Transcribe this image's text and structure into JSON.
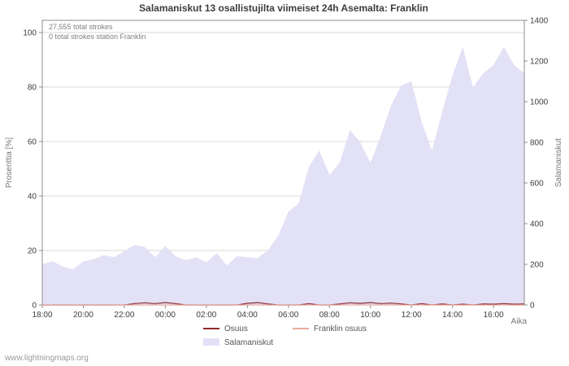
{
  "watermark": "www.lightningmaps.org",
  "colors": {
    "area": "#e3e1f6",
    "osuus": "#8f2a2a",
    "franklin": "#e7ab9f",
    "grid": "#d9d9d9",
    "axis": "#8c8c8c",
    "text": "#3c3c3c"
  },
  "annotations": {
    "total_strokes": "27,555 total strokes",
    "station_strokes": "0 total strokes station Franklin"
  },
  "legend": {
    "osuus": "Osuus",
    "franklin": "Franklin osuus",
    "strokes": "Salamaniskut"
  },
  "chart_data": {
    "type": "area",
    "title": "Salamaniskut 13 osallistujilta viimeiset 24h Asemalta: Franklin",
    "xlabel": "Aika",
    "ylabel_left": "Prosenttia  [%]",
    "ylabel_right": "Salamaniskut",
    "grid": "horizontal",
    "legend_position": "bottom",
    "x_tick_labels": [
      "18:00",
      "20:00",
      "22:00",
      "00:00",
      "02:00",
      "04:00",
      "06:00",
      "08:00",
      "10:00",
      "12:00",
      "14:00",
      "16:00"
    ],
    "x_tick_every_n_points": 4,
    "left_axis": {
      "ticks": [
        0,
        20,
        40,
        60,
        80,
        100
      ],
      "max": 100,
      "unit": "%"
    },
    "right_axis": {
      "ticks": [
        0,
        200,
        400,
        600,
        800,
        1000,
        1200,
        1400
      ],
      "max": 1400
    },
    "x": [
      "18:00",
      "18:30",
      "19:00",
      "19:30",
      "20:00",
      "20:30",
      "21:00",
      "21:30",
      "22:00",
      "22:30",
      "23:00",
      "23:30",
      "00:00",
      "00:30",
      "01:00",
      "01:30",
      "02:00",
      "02:30",
      "03:00",
      "03:30",
      "04:00",
      "04:30",
      "05:00",
      "05:30",
      "06:00",
      "06:30",
      "07:00",
      "07:30",
      "08:00",
      "08:30",
      "09:00",
      "09:30",
      "10:00",
      "10:30",
      "11:00",
      "11:30",
      "12:00",
      "12:30",
      "13:00",
      "13:30",
      "14:00",
      "14:30",
      "15:00",
      "15:30",
      "16:00",
      "16:30",
      "17:00",
      "17:30"
    ],
    "series": [
      {
        "name": "Salamaniskut",
        "type": "area",
        "axis": "right",
        "values": [
          200,
          215,
          190,
          175,
          215,
          225,
          245,
          235,
          265,
          295,
          285,
          235,
          290,
          240,
          220,
          235,
          210,
          255,
          195,
          240,
          235,
          230,
          270,
          340,
          460,
          500,
          680,
          760,
          640,
          700,
          860,
          800,
          700,
          830,
          980,
          1080,
          1100,
          900,
          760,
          950,
          1130,
          1270,
          1070,
          1140,
          1180,
          1270,
          1180,
          1140
        ]
      },
      {
        "name": "Osuus",
        "type": "line",
        "axis": "left",
        "values": [
          0,
          0,
          0,
          0,
          0,
          0,
          0,
          0,
          0,
          0.5,
          0.8,
          0.5,
          0.9,
          0.5,
          0,
          0,
          0,
          0,
          0,
          0,
          0.6,
          0.9,
          0.4,
          0,
          0,
          0,
          0.5,
          0,
          0,
          0.4,
          0.8,
          0.6,
          0.9,
          0.5,
          0.7,
          0.4,
          0,
          0.5,
          0,
          0.4,
          0,
          0.3,
          0,
          0.4,
          0.3,
          0.5,
          0.3,
          0.4
        ]
      },
      {
        "name": "Franklin osuus",
        "type": "line",
        "axis": "left",
        "values": [
          0,
          0,
          0,
          0,
          0,
          0,
          0,
          0,
          0,
          0,
          0,
          0,
          0,
          0,
          0,
          0,
          0,
          0,
          0,
          0,
          0,
          0,
          0,
          0,
          0,
          0,
          0,
          0,
          0,
          0,
          0,
          0,
          0,
          0,
          0,
          0,
          0,
          0,
          0,
          0,
          0,
          0,
          0,
          0,
          0,
          0,
          0,
          0
        ]
      }
    ]
  }
}
